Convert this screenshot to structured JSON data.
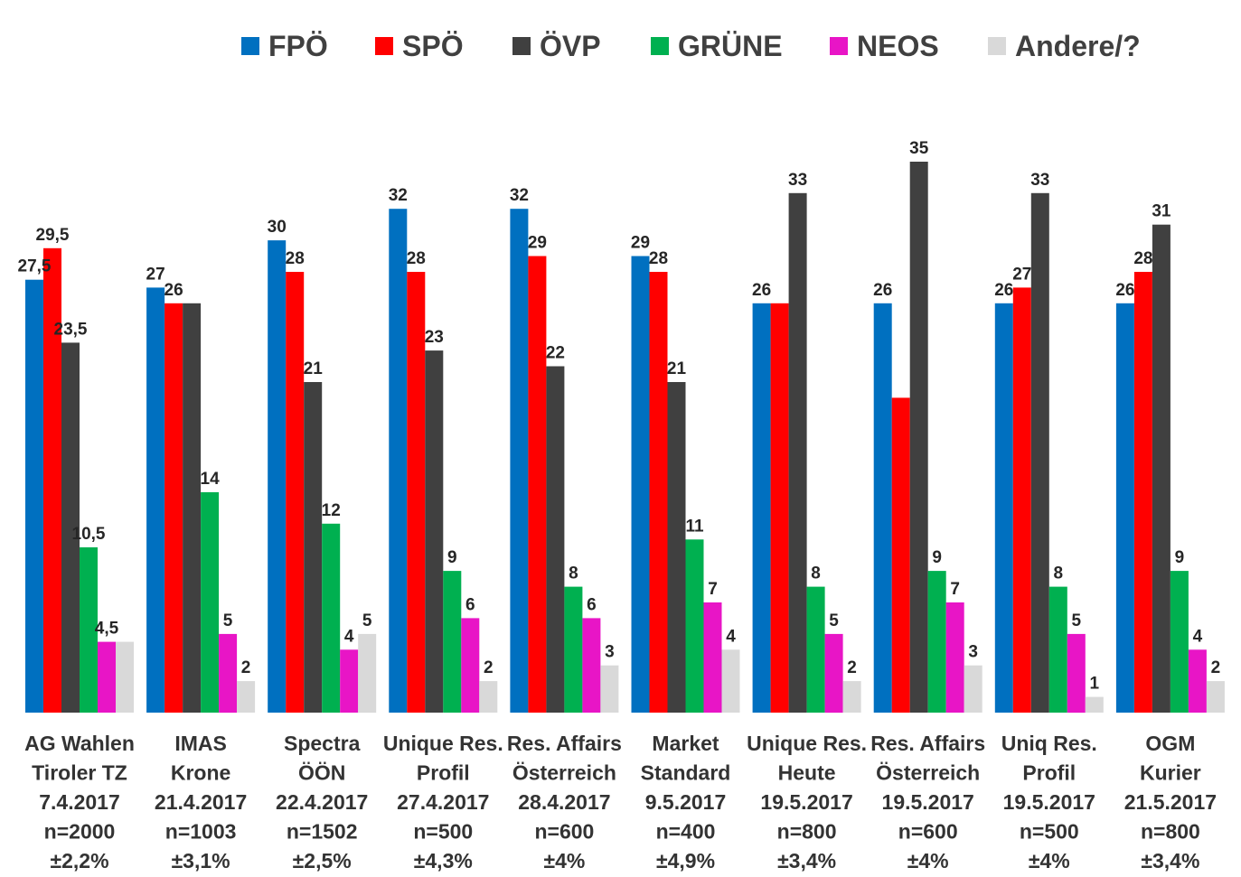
{
  "chart_data": {
    "type": "bar",
    "title": "",
    "xlabel": "",
    "ylabel": "",
    "ylim": [
      0,
      35
    ],
    "grid": false,
    "legend_position": "top",
    "categories": [
      [
        "AG Wahlen",
        "Tiroler TZ",
        "7.4.2017",
        "n=2000",
        "±2,2%"
      ],
      [
        "IMAS",
        "Krone",
        "21.4.2017",
        "n=1003",
        "±3,1%"
      ],
      [
        "Spectra",
        "ÖÖN",
        "22.4.2017",
        "n=1502",
        "±2,5%"
      ],
      [
        "Unique Res.",
        "Profil",
        "27.4.2017",
        "n=500",
        "±4,3%"
      ],
      [
        "Res. Affairs",
        "Österreich",
        "28.4.2017",
        "n=600",
        "±4%"
      ],
      [
        "Market",
        "Standard",
        "9.5.2017",
        "n=400",
        "±4,9%"
      ],
      [
        "Unique Res.",
        "Heute",
        "19.5.2017",
        "n=800",
        "±3,4%"
      ],
      [
        "Res. Affairs",
        "Österreich",
        "19.5.2017",
        "n=600",
        "±4%"
      ],
      [
        "Uniq Res.",
        "Profil",
        "19.5.2017",
        "n=500",
        "±4%"
      ],
      [
        "OGM",
        "Kurier",
        "21.5.2017",
        "n=800",
        "±3,4%"
      ]
    ],
    "series": [
      {
        "name": "FPÖ",
        "color": "#0070C0",
        "values": [
          27.5,
          27,
          30,
          32,
          32,
          29,
          26,
          26,
          26,
          26
        ],
        "labels": [
          "27,5",
          "27",
          "30",
          "32",
          "32",
          "29",
          "26",
          "26",
          "26",
          "26"
        ]
      },
      {
        "name": "SPÖ",
        "color": "#FF0000",
        "values": [
          29.5,
          26,
          28,
          28,
          29,
          28,
          26,
          20,
          27,
          28
        ],
        "labels": [
          "29,5",
          "26",
          "28",
          "28",
          "29",
          "28",
          "",
          "",
          "27",
          "28"
        ]
      },
      {
        "name": "ÖVP",
        "color": "#404040",
        "values": [
          23.5,
          26,
          21,
          23,
          22,
          21,
          33,
          35,
          33,
          31
        ],
        "labels": [
          "23,5",
          "",
          "21",
          "23",
          "22",
          "21",
          "33",
          "35",
          "33",
          "31"
        ]
      },
      {
        "name": "GRÜNE",
        "color": "#00B050",
        "values": [
          10.5,
          14,
          12,
          9,
          8,
          11,
          8,
          9,
          8,
          9
        ],
        "labels": [
          "10,5",
          "14",
          "12",
          "9",
          "8",
          "11",
          "8",
          "9",
          "8",
          "9"
        ]
      },
      {
        "name": "NEOS",
        "color": "#E815C6",
        "values": [
          4.5,
          5,
          4,
          6,
          6,
          7,
          5,
          7,
          5,
          4
        ],
        "labels": [
          "4,5",
          "5",
          "4",
          "6",
          "6",
          "7",
          "5",
          "7",
          "5",
          "4"
        ]
      },
      {
        "name": "Andere/?",
        "color": "#D9D9D9",
        "values": [
          4.5,
          2,
          5,
          2,
          3,
          4,
          2,
          3,
          1,
          2
        ],
        "labels": [
          "",
          "2",
          "5",
          "2",
          "3",
          "4",
          "2",
          "3",
          "1",
          "2"
        ]
      }
    ]
  }
}
